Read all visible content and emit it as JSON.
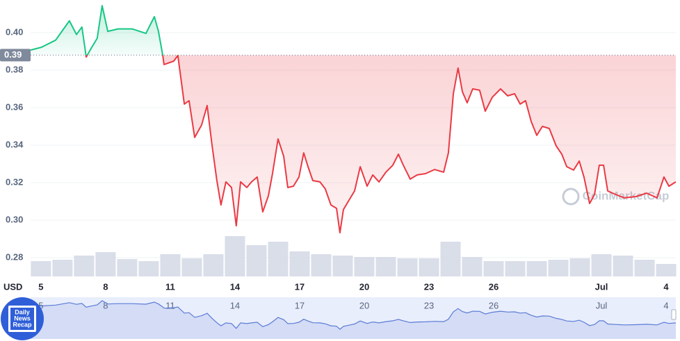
{
  "chart_data": {
    "type": "line",
    "currency": "USD",
    "watermark": "CoinMarketCap",
    "badge": [
      "Daily",
      "News",
      "Recap"
    ],
    "x": [
      4.52,
      5.03,
      5.68,
      6.32,
      6.65,
      6.9,
      7.1,
      7.35,
      7.61,
      7.84,
      8.1,
      8.58,
      9.23,
      9.87,
      10.26,
      10.45,
      10.65,
      10.71,
      11.16,
      11.35,
      11.65,
      11.87,
      12.13,
      12.45,
      12.71,
      12.94,
      13.16,
      13.35,
      13.58,
      13.84,
      14.06,
      14.26,
      14.55,
      14.77,
      15.03,
      15.29,
      15.55,
      15.74,
      16.0,
      16.26,
      16.45,
      16.71,
      16.97,
      17.19,
      17.39,
      17.61,
      17.94,
      18.19,
      18.45,
      18.71,
      18.87,
      19.03,
      19.29,
      19.55,
      19.81,
      20.13,
      20.39,
      20.68,
      21.0,
      21.32,
      21.58,
      21.81,
      22.13,
      22.45,
      22.84,
      23.26,
      23.68,
      23.9,
      24.13,
      24.35,
      24.55,
      24.77,
      25.03,
      25.35,
      25.61,
      25.94,
      26.32,
      26.65,
      26.97,
      27.23,
      27.48,
      27.74,
      28.0,
      28.26,
      28.58,
      28.9,
      29.16,
      29.39,
      29.71,
      29.97,
      30.19,
      30.45,
      30.68,
      30.9,
      31.1,
      31.29,
      31.65,
      32.06,
      32.61,
      33.1,
      33.58,
      33.9,
      34.13,
      34.45
    ],
    "values": [
      0.3907,
      0.3922,
      0.396,
      0.4063,
      0.399,
      0.403,
      0.387,
      0.392,
      0.397,
      0.4144,
      0.4007,
      0.402,
      0.402,
      0.3996,
      0.4085,
      0.4007,
      0.3878,
      0.383,
      0.3848,
      0.3878,
      0.3619,
      0.3637,
      0.3441,
      0.3507,
      0.3611,
      0.3396,
      0.3211,
      0.3081,
      0.3204,
      0.3174,
      0.297,
      0.3204,
      0.3174,
      0.3204,
      0.323,
      0.3044,
      0.313,
      0.3248,
      0.3433,
      0.3341,
      0.3174,
      0.3181,
      0.323,
      0.3359,
      0.3285,
      0.3211,
      0.3204,
      0.3167,
      0.3081,
      0.3063,
      0.2933,
      0.3056,
      0.3107,
      0.3156,
      0.3285,
      0.3181,
      0.3241,
      0.3204,
      0.3256,
      0.3293,
      0.3352,
      0.3293,
      0.3219,
      0.3241,
      0.3248,
      0.327,
      0.3256,
      0.3359,
      0.3674,
      0.3811,
      0.3685,
      0.3626,
      0.37,
      0.3693,
      0.3581,
      0.3656,
      0.37,
      0.3663,
      0.3674,
      0.3619,
      0.3637,
      0.3526,
      0.3452,
      0.35,
      0.3489,
      0.3396,
      0.3352,
      0.3285,
      0.3267,
      0.3315,
      0.323,
      0.3089,
      0.3137,
      0.3293,
      0.3293,
      0.3156,
      0.3137,
      0.3119,
      0.3126,
      0.3144,
      0.3119,
      0.323,
      0.3181,
      0.3204
    ],
    "baseline": {
      "value": 0.388,
      "label": "0.39"
    },
    "colors": {
      "above": "#16c784",
      "below": "#ea3943",
      "volume": "#cfd6e4",
      "navigator": "#5b7bd5"
    },
    "xlim": [
      4.52,
      34.45
    ],
    "xticks": [
      5,
      8,
      11,
      14,
      17,
      20,
      23,
      26,
      {
        "value": 31,
        "label": "Jul"
      },
      {
        "value": 34,
        "label": "4"
      }
    ],
    "ylim": [
      0.27,
      0.4174
    ],
    "yticks": [
      0.28,
      {
        "value": 0.3,
        "label": "0.30"
      },
      0.32,
      0.34,
      0.36,
      0.38,
      {
        "value": 0.4,
        "label": "0.40"
      }
    ],
    "grid": true,
    "volume": {
      "axis": "y2",
      "x": [
        5,
        6,
        7,
        8,
        9,
        10,
        11,
        12,
        13,
        14,
        15,
        16,
        17,
        18,
        19,
        20,
        21,
        22,
        23,
        24,
        25,
        26,
        27,
        28,
        29,
        30,
        31,
        32,
        33,
        34
      ],
      "values": [
        22,
        24,
        30,
        35,
        25,
        22,
        32,
        26,
        32,
        58,
        45,
        50,
        36,
        32,
        30,
        28,
        28,
        26,
        26,
        50,
        28,
        22,
        22,
        22,
        24,
        26,
        32,
        30,
        24,
        18
      ]
    },
    "y2lim": [
      0,
      100
    ]
  }
}
